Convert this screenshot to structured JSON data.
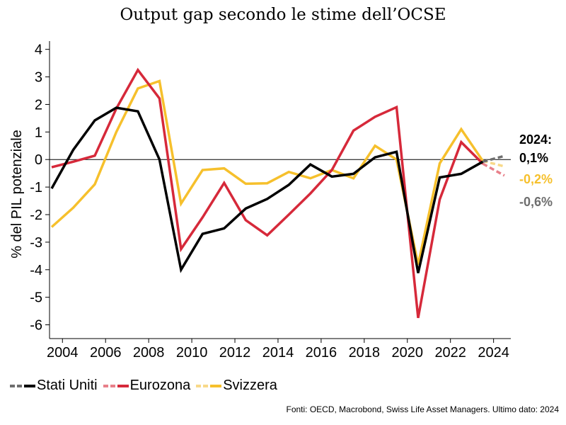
{
  "chart_data": {
    "type": "line",
    "title": "Output gap secondo le stime dell’OCSE",
    "ylabel": "% del PIL potenziale",
    "xlabel": "",
    "ylim": [
      -6.5,
      4.3
    ],
    "xlim": [
      2003.4,
      2024.8
    ],
    "yticks": [
      4,
      3,
      2,
      1,
      0,
      -1,
      -2,
      -3,
      -4,
      -5,
      -6
    ],
    "xticks": [
      2004,
      2006,
      2008,
      2010,
      2012,
      2014,
      2016,
      2018,
      2020,
      2022,
      2024
    ],
    "grid": false,
    "zero_line": true,
    "legend_position": "bottom-left",
    "x": [
      2003.5,
      2004.5,
      2005.5,
      2006.5,
      2007.5,
      2008.5,
      2009.5,
      2010.5,
      2011.5,
      2012.5,
      2013.5,
      2014.5,
      2015.5,
      2016.5,
      2017.5,
      2018.5,
      2019.5,
      2020.5,
      2021.5,
      2022.5,
      2023.5
    ],
    "forecast_x": [
      2023.5,
      2024.5
    ],
    "series": [
      {
        "name": "Stati Uniti",
        "color": "#000000",
        "forecast_color": "#6e6e6e",
        "values": [
          -1.05,
          0.35,
          1.42,
          1.88,
          1.75,
          0.0,
          -4.0,
          -2.7,
          -2.5,
          -1.78,
          -1.43,
          -0.92,
          -0.18,
          -0.62,
          -0.52,
          0.08,
          0.28,
          -4.12,
          -0.65,
          -0.52,
          -0.08
        ],
        "forecast": [
          -0.08,
          0.13
        ]
      },
      {
        "name": "Eurozona",
        "color": "#d6293a",
        "forecast_color": "#e8808a",
        "values": [
          -0.28,
          -0.08,
          0.14,
          1.85,
          3.25,
          2.22,
          -3.25,
          -2.1,
          -0.85,
          -2.2,
          -2.75,
          -2.0,
          -1.23,
          -0.38,
          1.05,
          1.55,
          1.9,
          -5.75,
          -1.45,
          0.63,
          -0.15
        ],
        "forecast": [
          -0.15,
          -0.58
        ]
      },
      {
        "name": "Svizzera",
        "color": "#f6c02c",
        "forecast_color": "#f8d98a",
        "values": [
          -2.45,
          -1.75,
          -0.9,
          1.0,
          2.58,
          2.85,
          -1.6,
          -0.38,
          -0.32,
          -0.88,
          -0.86,
          -0.45,
          -0.68,
          -0.38,
          -0.68,
          0.5,
          0.0,
          -3.82,
          -0.14,
          1.1,
          -0.05
        ],
        "forecast": [
          -0.05,
          -0.25
        ]
      }
    ],
    "annotation": {
      "title": "2024:",
      "labels": [
        {
          "text": "0,1%",
          "color": "#000000"
        },
        {
          "text": "-0,2%",
          "color": "#f6c02c"
        },
        {
          "text": "-0,6%",
          "color": "#6e6e6e"
        }
      ]
    },
    "source": "Fonti: OECD, Macrobond, Swiss Life Asset Managers. Ultimo dato: 2024"
  }
}
